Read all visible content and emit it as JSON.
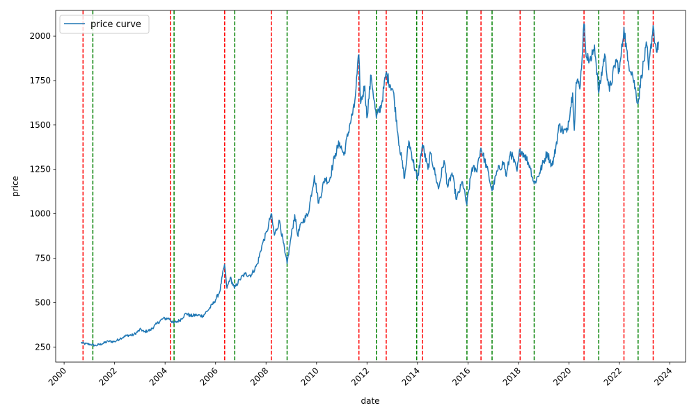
{
  "chart_data": {
    "type": "line",
    "title": "",
    "xlabel": "date",
    "ylabel": "price",
    "xlim": [
      "1999-09-01",
      "2024-08-15"
    ],
    "ylim": [
      165,
      2145
    ],
    "x_ticks": [
      "2000",
      "2002",
      "2004",
      "2006",
      "2008",
      "2010",
      "2012",
      "2014",
      "2016",
      "2018",
      "2020",
      "2022",
      "2024"
    ],
    "y_ticks": [
      "250",
      "500",
      "750",
      "1000",
      "1250",
      "1500",
      "1750",
      "2000"
    ],
    "grid": false,
    "legend": {
      "position": "top-left",
      "entries": [
        "price curve"
      ]
    },
    "series": [
      {
        "name": "price curve",
        "color": "#1f77b4",
        "points": [
          [
            "2000-09-01",
            275
          ],
          [
            "2000-11-01",
            268
          ],
          [
            "2001-01-15",
            265
          ],
          [
            "2001-04-01",
            258
          ],
          [
            "2001-07-01",
            268
          ],
          [
            "2001-10-01",
            282
          ],
          [
            "2002-01-01",
            280
          ],
          [
            "2002-04-01",
            300
          ],
          [
            "2002-07-01",
            315
          ],
          [
            "2002-10-01",
            318
          ],
          [
            "2003-01-15",
            350
          ],
          [
            "2003-03-01",
            335
          ],
          [
            "2003-06-01",
            345
          ],
          [
            "2003-09-01",
            380
          ],
          [
            "2003-12-01",
            410
          ],
          [
            "2004-03-01",
            410
          ],
          [
            "2004-05-01",
            385
          ],
          [
            "2004-08-01",
            400
          ],
          [
            "2004-11-01",
            440
          ],
          [
            "2005-01-01",
            425
          ],
          [
            "2005-04-01",
            430
          ],
          [
            "2005-07-01",
            425
          ],
          [
            "2005-10-01",
            465
          ],
          [
            "2005-12-15",
            505
          ],
          [
            "2006-03-01",
            560
          ],
          [
            "2006-05-10",
            715
          ],
          [
            "2006-06-15",
            580
          ],
          [
            "2006-08-01",
            640
          ],
          [
            "2006-10-01",
            580
          ],
          [
            "2006-12-15",
            630
          ],
          [
            "2007-03-01",
            660
          ],
          [
            "2007-06-01",
            655
          ],
          [
            "2007-09-01",
            720
          ],
          [
            "2007-11-01",
            820
          ],
          [
            "2008-01-15",
            900
          ],
          [
            "2008-03-15",
            1000
          ],
          [
            "2008-05-01",
            880
          ],
          [
            "2008-07-15",
            960
          ],
          [
            "2008-10-01",
            780
          ],
          [
            "2008-11-01",
            720
          ],
          [
            "2009-01-01",
            880
          ],
          [
            "2009-02-20",
            995
          ],
          [
            "2009-04-01",
            880
          ],
          [
            "2009-06-01",
            950
          ],
          [
            "2009-09-01",
            1000
          ],
          [
            "2009-12-01",
            1215
          ],
          [
            "2010-02-01",
            1060
          ],
          [
            "2010-05-01",
            1200
          ],
          [
            "2010-07-01",
            1180
          ],
          [
            "2010-10-01",
            1340
          ],
          [
            "2010-12-01",
            1400
          ],
          [
            "2011-02-01",
            1330
          ],
          [
            "2011-05-01",
            1510
          ],
          [
            "2011-07-01",
            1600
          ],
          [
            "2011-09-05",
            1895
          ],
          [
            "2011-10-01",
            1620
          ],
          [
            "2011-12-01",
            1720
          ],
          [
            "2011-12-30",
            1540
          ],
          [
            "2012-03-01",
            1780
          ],
          [
            "2012-05-15",
            1540
          ],
          [
            "2012-08-01",
            1620
          ],
          [
            "2012-10-01",
            1790
          ],
          [
            "2013-01-15",
            1690
          ],
          [
            "2013-04-15",
            1380
          ],
          [
            "2013-06-28",
            1200
          ],
          [
            "2013-08-28",
            1410
          ],
          [
            "2013-12-31",
            1190
          ],
          [
            "2014-03-15",
            1390
          ],
          [
            "2014-06-01",
            1250
          ],
          [
            "2014-07-10",
            1340
          ],
          [
            "2014-11-01",
            1140
          ],
          [
            "2015-01-20",
            1300
          ],
          [
            "2015-03-15",
            1150
          ],
          [
            "2015-05-15",
            1230
          ],
          [
            "2015-07-20",
            1080
          ],
          [
            "2015-10-15",
            1180
          ],
          [
            "2015-12-15",
            1050
          ],
          [
            "2016-03-01",
            1260
          ],
          [
            "2016-05-01",
            1240
          ],
          [
            "2016-07-06",
            1370
          ],
          [
            "2016-10-01",
            1260
          ],
          [
            "2016-12-15",
            1130
          ],
          [
            "2017-03-01",
            1240
          ],
          [
            "2017-06-01",
            1290
          ],
          [
            "2017-07-10",
            1210
          ],
          [
            "2017-09-08",
            1350
          ],
          [
            "2017-12-12",
            1240
          ],
          [
            "2018-01-25",
            1365
          ],
          [
            "2018-04-01",
            1330
          ],
          [
            "2018-06-15",
            1270
          ],
          [
            "2018-08-16",
            1170
          ],
          [
            "2018-11-01",
            1230
          ],
          [
            "2019-02-20",
            1345
          ],
          [
            "2019-05-01",
            1270
          ],
          [
            "2019-06-01",
            1320
          ],
          [
            "2019-08-15",
            1500
          ],
          [
            "2019-10-01",
            1470
          ],
          [
            "2019-12-01",
            1460
          ],
          [
            "2020-02-24",
            1680
          ],
          [
            "2020-03-19",
            1470
          ],
          [
            "2020-04-15",
            1740
          ],
          [
            "2020-06-15",
            1730
          ],
          [
            "2020-08-06",
            2070
          ],
          [
            "2020-09-15",
            1880
          ],
          [
            "2020-11-15",
            1860
          ],
          [
            "2021-01-06",
            1950
          ],
          [
            "2021-03-08",
            1680
          ],
          [
            "2021-06-01",
            1900
          ],
          [
            "2021-08-09",
            1690
          ],
          [
            "2021-11-16",
            1870
          ],
          [
            "2022-01-01",
            1800
          ],
          [
            "2022-03-08",
            2050
          ],
          [
            "2022-05-01",
            1860
          ],
          [
            "2022-07-01",
            1800
          ],
          [
            "2022-09-28",
            1620
          ],
          [
            "2022-11-15",
            1780
          ],
          [
            "2023-02-01",
            1950
          ],
          [
            "2023-02-28",
            1810
          ],
          [
            "2023-05-04",
            2060
          ],
          [
            "2023-06-01",
            1960
          ],
          [
            "2023-06-29",
            1910
          ],
          [
            "2023-07-20",
            1970
          ]
        ]
      }
    ],
    "vertical_lines": {
      "red": {
        "color": "#ff0000",
        "dates": [
          "2000-10-01",
          "2004-03-20",
          "2006-05-12",
          "2008-03-17",
          "2011-09-06",
          "2012-10-05",
          "2014-03-14",
          "2016-07-08",
          "2018-01-25",
          "2020-08-07",
          "2022-03-08",
          "2023-05-05"
        ]
      },
      "green": {
        "color": "#008000",
        "dates": [
          "2001-02-20",
          "2004-05-10",
          "2006-10-05",
          "2008-11-01",
          "2012-05-16",
          "2013-12-20",
          "2015-12-17",
          "2016-12-15",
          "2018-08-16",
          "2021-03-08",
          "2022-09-28"
        ]
      }
    }
  }
}
